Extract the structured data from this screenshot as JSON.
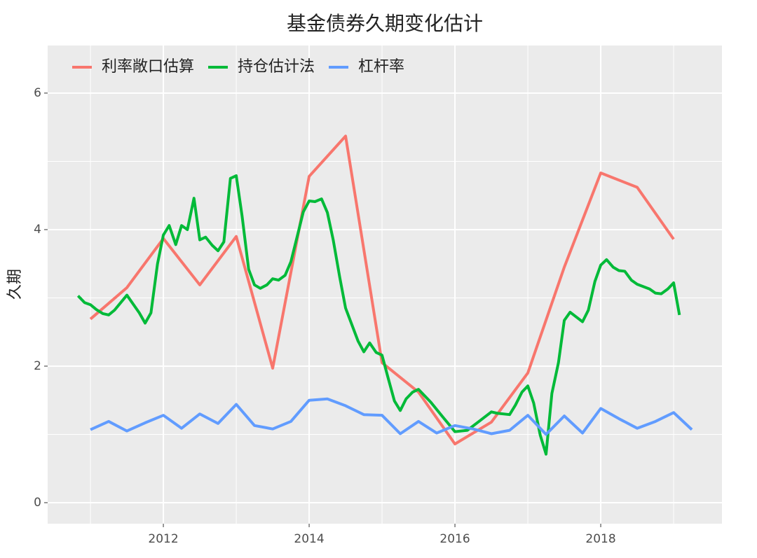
{
  "chart_data": {
    "type": "line",
    "title": "基金债券久期变化估计",
    "y_label": "久期",
    "xlim": [
      2010.413,
      2019.663
    ],
    "xticks": [
      2012,
      2014,
      2016,
      2018
    ],
    "ylim": [
      -0.308,
      6.697
    ],
    "yticks": [
      0,
      2,
      4,
      6
    ],
    "grid": true,
    "legend": "top-left",
    "series": [
      {
        "name": "利率敞口估算",
        "color": "#F8766D",
        "x": [
          2011.0,
          2011.5,
          2012.0,
          2012.5,
          2013.0,
          2013.5,
          2014.0,
          2014.5,
          2015.0,
          2015.5,
          2016.0,
          2016.5,
          2017.0,
          2017.5,
          2018.0,
          2018.5,
          2019.0
        ],
        "values": [
          2.69,
          3.15,
          3.87,
          3.19,
          3.9,
          1.97,
          4.78,
          5.37,
          2.05,
          1.62,
          0.86,
          1.18,
          1.9,
          3.45,
          4.83,
          4.62,
          3.86
        ]
      },
      {
        "name": "持仓估计法",
        "color": "#00BA38",
        "x": [
          2010.83,
          2010.92,
          2011.0,
          2011.08,
          2011.17,
          2011.25,
          2011.33,
          2011.5,
          2011.67,
          2011.75,
          2011.83,
          2011.92,
          2012.0,
          2012.08,
          2012.17,
          2012.25,
          2012.33,
          2012.42,
          2012.5,
          2012.58,
          2012.67,
          2012.75,
          2012.83,
          2012.92,
          2013.0,
          2013.08,
          2013.17,
          2013.25,
          2013.33,
          2013.42,
          2013.5,
          2013.58,
          2013.67,
          2013.75,
          2013.92,
          2014.0,
          2014.08,
          2014.17,
          2014.25,
          2014.33,
          2014.42,
          2014.5,
          2014.67,
          2014.75,
          2014.83,
          2014.92,
          2015.0,
          2015.08,
          2015.17,
          2015.25,
          2015.33,
          2015.42,
          2015.5,
          2015.67,
          2015.83,
          2016.0,
          2016.17,
          2016.33,
          2016.5,
          2016.58,
          2016.75,
          2016.83,
          2016.92,
          2017.0,
          2017.08,
          2017.17,
          2017.25,
          2017.33,
          2017.42,
          2017.5,
          2017.58,
          2017.75,
          2017.83,
          2017.92,
          2018.0,
          2018.08,
          2018.17,
          2018.25,
          2018.33,
          2018.42,
          2018.5,
          2018.67,
          2018.75,
          2018.83,
          2018.92,
          2019.0,
          2019.08
        ],
        "values": [
          3.03,
          2.93,
          2.9,
          2.83,
          2.77,
          2.75,
          2.82,
          3.04,
          2.78,
          2.63,
          2.78,
          3.5,
          3.92,
          4.06,
          3.78,
          4.06,
          4.0,
          4.46,
          3.85,
          3.89,
          3.77,
          3.69,
          3.82,
          4.75,
          4.79,
          4.2,
          3.42,
          3.19,
          3.14,
          3.19,
          3.28,
          3.26,
          3.33,
          3.53,
          4.26,
          4.42,
          4.41,
          4.45,
          4.25,
          3.85,
          3.3,
          2.85,
          2.37,
          2.21,
          2.34,
          2.2,
          2.16,
          1.84,
          1.49,
          1.35,
          1.52,
          1.62,
          1.66,
          1.47,
          1.26,
          1.04,
          1.06,
          1.19,
          1.33,
          1.31,
          1.29,
          1.43,
          1.62,
          1.71,
          1.46,
          0.99,
          0.71,
          1.6,
          2.05,
          2.67,
          2.79,
          2.65,
          2.82,
          3.24,
          3.48,
          3.56,
          3.45,
          3.4,
          3.39,
          3.26,
          3.2,
          3.13,
          3.07,
          3.06,
          3.13,
          3.22,
          2.75
        ]
      },
      {
        "name": "杠杆率",
        "color": "#619CFF",
        "x": [
          2011.0,
          2011.25,
          2011.5,
          2011.75,
          2012.0,
          2012.25,
          2012.5,
          2012.75,
          2013.0,
          2013.25,
          2013.5,
          2013.75,
          2014.0,
          2014.25,
          2014.5,
          2014.75,
          2015.0,
          2015.25,
          2015.5,
          2015.75,
          2016.0,
          2016.25,
          2016.5,
          2016.75,
          2017.0,
          2017.25,
          2017.5,
          2017.75,
          2018.0,
          2018.25,
          2018.5,
          2018.75,
          2019.0,
          2019.25
        ],
        "values": [
          1.07,
          1.19,
          1.05,
          1.17,
          1.28,
          1.09,
          1.3,
          1.16,
          1.44,
          1.13,
          1.08,
          1.19,
          1.5,
          1.52,
          1.42,
          1.29,
          1.28,
          1.01,
          1.19,
          1.02,
          1.13,
          1.08,
          1.01,
          1.06,
          1.28,
          1.0,
          1.27,
          1.02,
          1.38,
          1.23,
          1.09,
          1.19,
          1.32,
          1.07
        ]
      }
    ]
  }
}
